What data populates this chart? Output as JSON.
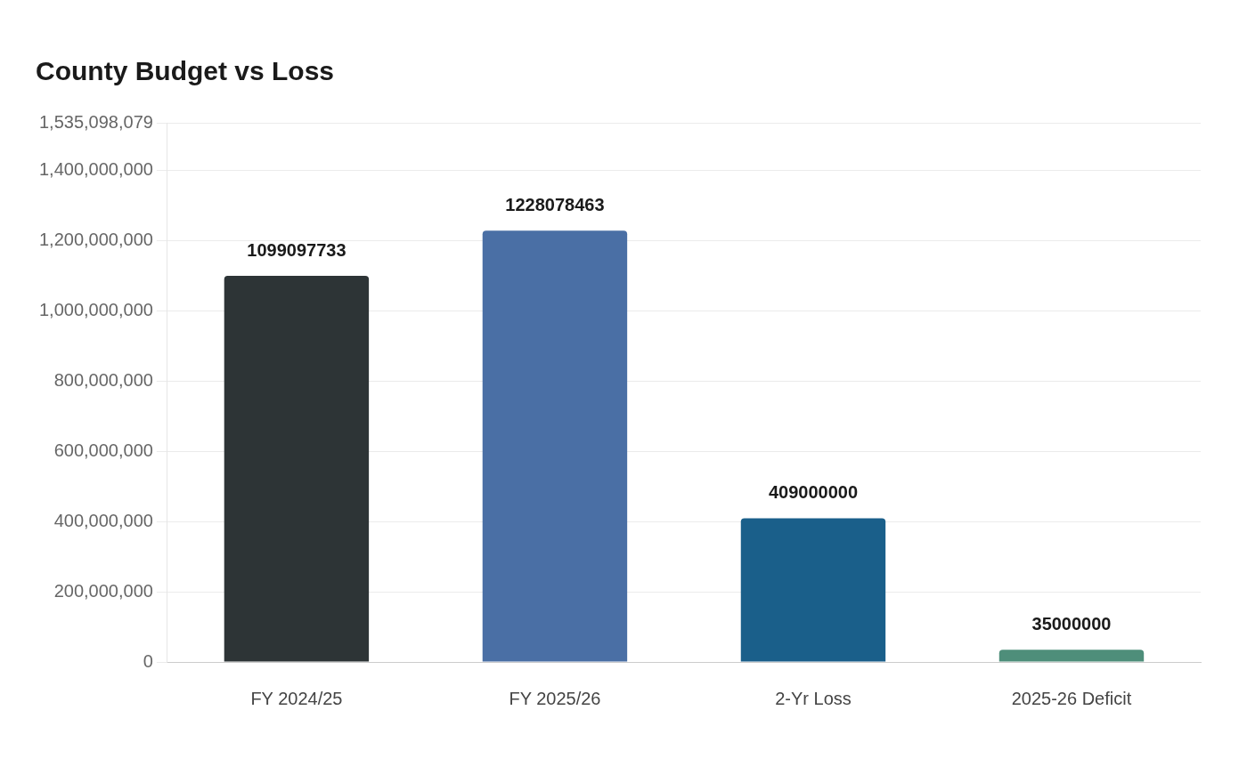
{
  "chart_data": {
    "type": "bar",
    "title": "County Budget vs Loss",
    "categories": [
      "FY 2024/25",
      "FY 2025/26",
      "2-Yr Loss",
      "2025-26 Deficit"
    ],
    "values": [
      1099097733,
      1228078463,
      409000000,
      35000000
    ],
    "colors": [
      "#2d3436",
      "#4a6fa5",
      "#1a5f8a",
      "#4e8e7a"
    ],
    "ylim": [
      0,
      1535098079
    ],
    "yticks": [
      0,
      {
        "value": 200000000,
        "label": "200,000,000"
      },
      {
        "value": 400000000,
        "label": "400,000,000"
      },
      {
        "value": 600000000,
        "label": "600,000,000"
      },
      {
        "value": 800000000,
        "label": "800,000,000"
      },
      {
        "value": 1000000000,
        "label": "1,000,000,000"
      },
      {
        "value": 1200000000,
        "label": "1,200,000,000"
      },
      {
        "value": 1400000000,
        "label": "1,400,000,000"
      },
      {
        "value": 1535098079,
        "label": "1,535,098,079"
      }
    ],
    "grid": "y",
    "data_labels": true,
    "legend": false
  }
}
